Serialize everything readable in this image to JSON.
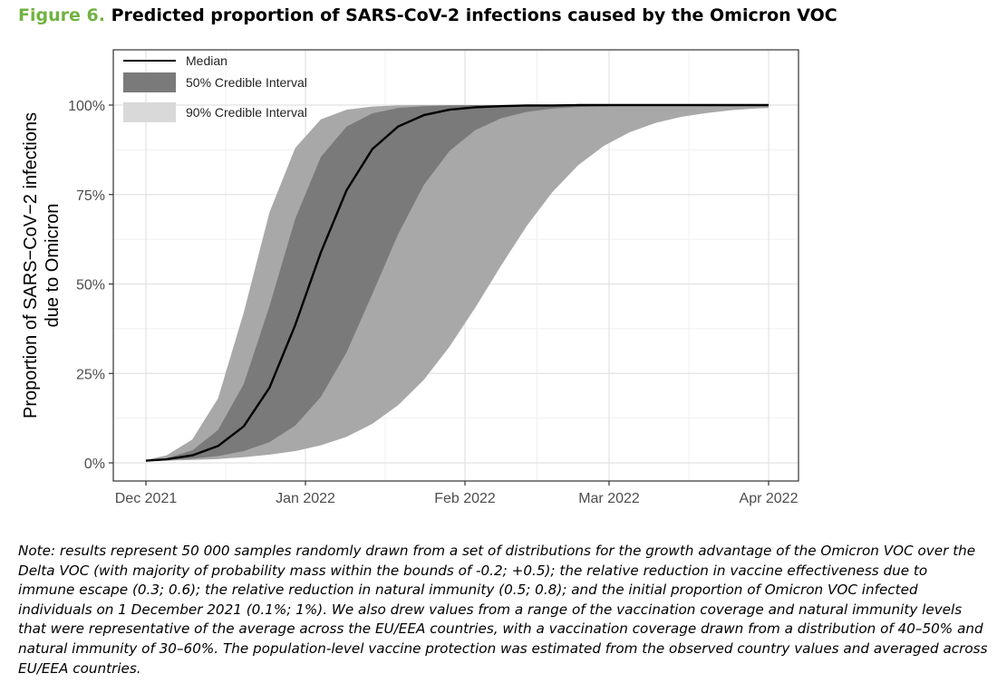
{
  "figure": {
    "label": "Figure 6.",
    "title": "Predicted proportion of SARS-CoV-2 infections caused by the Omicron VOC",
    "note": "Note: results represent 50 000 samples randomly drawn from a set of distributions for the growth advantage of the Omicron VOC over the Delta VOC (with majority of probability mass within the bounds of -0.2; +0.5); the relative reduction in vaccine effectiveness due to immune escape (0.3; 0.6); the relative reduction in natural immunity (0.5; 0.8); and the initial proportion of Omicron VOC infected individuals on 1 December 2021 (0.1%; 1%). We also drew values from a range of the vaccination coverage and natural immunity levels that were representative of the average across the EU/EEA countries, with a vaccination coverage drawn from a distribution of 40–50% and natural immunity of 30–60%. The population-level vaccine protection was estimated from the observed country values and averaged across EU/EEA countries."
  },
  "chart_data": {
    "type": "area",
    "ylabel": "Proportion of SARS−CoV−2 infections due to Omicron",
    "ylabel_lines": [
      "Proportion of SARS−CoV−2 infections",
      "due to Omicron"
    ],
    "xlabel": "",
    "x_ticks": [
      "Dec 2021",
      "Jan 2022",
      "Feb 2022",
      "Mar 2022",
      "Apr 2022"
    ],
    "x_tick_days": [
      0,
      31,
      62,
      90,
      121
    ],
    "y_ticks": [
      "0%",
      "25%",
      "50%",
      "75%",
      "100%"
    ],
    "y_tick_values": [
      0,
      25,
      50,
      75,
      100
    ],
    "xlim": [
      "2021-12-01",
      "2022-04-01"
    ],
    "ylim": [
      0,
      100
    ],
    "grid": true,
    "legend_position": "top-left",
    "legend": [
      {
        "name": "Median",
        "kind": "line",
        "color": "#000000"
      },
      {
        "name": "50% Credible Interval",
        "kind": "band",
        "color": "#7a7a7a"
      },
      {
        "name": "90% Credible Interval",
        "kind": "band",
        "color": "#d9d9d9"
      }
    ],
    "band_colors": {
      "ci90": "#a8a8a8",
      "ci50": "#7a7a7a",
      "median": "#000000"
    },
    "x": [
      "2021-12-01",
      "2021-12-05",
      "2021-12-10",
      "2021-12-15",
      "2021-12-20",
      "2021-12-25",
      "2021-12-30",
      "2022-01-04",
      "2022-01-09",
      "2022-01-14",
      "2022-01-19",
      "2022-01-24",
      "2022-01-29",
      "2022-02-03",
      "2022-02-08",
      "2022-02-13",
      "2022-02-18",
      "2022-02-23",
      "2022-02-28",
      "2022-03-05",
      "2022-03-10",
      "2022-03-15",
      "2022-03-20",
      "2022-03-25",
      "2022-03-30",
      "2022-04-01"
    ],
    "series": [
      {
        "name": "Median",
        "values": [
          0.6,
          1.0,
          2.1,
          4.7,
          10.2,
          21.0,
          38.5,
          58.8,
          76.2,
          87.7,
          94.0,
          97.2,
          98.7,
          99.4,
          99.7,
          99.9,
          99.9,
          100,
          100,
          100,
          100,
          100,
          100,
          100,
          100,
          100
        ]
      },
      {
        "name": "50% Credible Interval",
        "lower": [
          0.5,
          0.8,
          1.2,
          1.9,
          3.3,
          5.8,
          10.4,
          18.4,
          30.9,
          47.2,
          63.9,
          77.7,
          87.2,
          93.0,
          96.3,
          98.1,
          99.0,
          99.5,
          99.7,
          99.9,
          99.9,
          100,
          100,
          100,
          100,
          100
        ],
        "upper": [
          0.6,
          1.3,
          3.5,
          9.2,
          22.0,
          43.8,
          68.2,
          85.5,
          94.0,
          97.7,
          99.2,
          99.7,
          99.9,
          100,
          100,
          100,
          100,
          100,
          100,
          100,
          100,
          100,
          100,
          100,
          100,
          100
        ]
      },
      {
        "name": "90% Credible Interval",
        "lower": [
          0.5,
          0.6,
          0.8,
          1.1,
          1.6,
          2.3,
          3.3,
          4.9,
          7.3,
          10.9,
          16.1,
          23.2,
          32.5,
          43.4,
          55.1,
          66.2,
          75.7,
          83.2,
          88.6,
          92.4,
          95.0,
          96.7,
          97.8,
          98.6,
          99.1,
          99.2
        ],
        "upper": [
          0.8,
          2.1,
          6.5,
          18.0,
          42.0,
          70.0,
          88.0,
          96.0,
          98.7,
          99.6,
          99.9,
          100,
          100,
          100,
          100,
          100,
          100,
          100,
          100,
          100,
          100,
          100,
          100,
          100,
          100,
          100
        ]
      }
    ]
  }
}
